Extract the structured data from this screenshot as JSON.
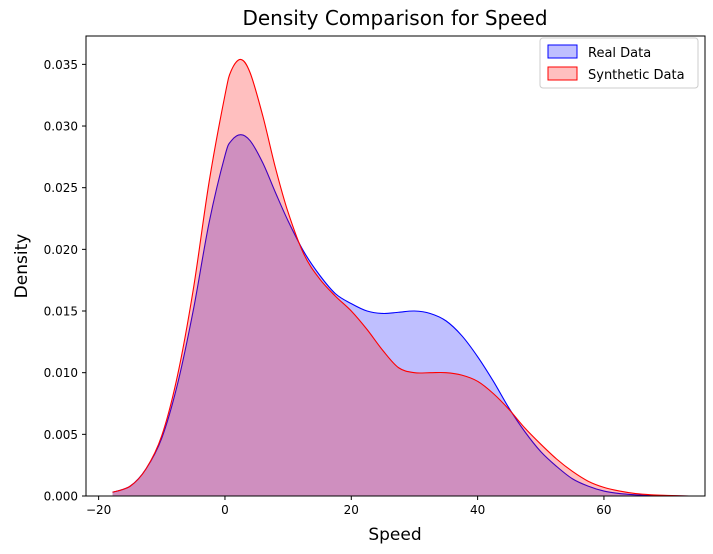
{
  "chart_data": {
    "type": "area",
    "title": "Density Comparison for Speed",
    "xlabel": "Speed",
    "ylabel": "Density",
    "xlim": [
      -22,
      76
    ],
    "ylim": [
      0,
      0.0373
    ],
    "xticks": [
      -20,
      0,
      20,
      40,
      60
    ],
    "xtick_labels": [
      "−20",
      "0",
      "20",
      "40",
      "60"
    ],
    "yticks": [
      0,
      0.005,
      0.01,
      0.015,
      0.02,
      0.025,
      0.03,
      0.035
    ],
    "ytick_labels": [
      "0.000",
      "0.005",
      "0.010",
      "0.015",
      "0.020",
      "0.025",
      "0.030",
      "0.035"
    ],
    "grid": false,
    "legend_position": "top-right",
    "series": [
      {
        "name": "Real Data",
        "color": "#0000ff",
        "fill": "#0000ff",
        "fill_opacity": 0.25,
        "x": [
          -17.8,
          -15,
          -12.5,
          -10,
          -7.5,
          -5,
          -2.5,
          0,
          1,
          2.5,
          4,
          6,
          8,
          10,
          12.5,
          15,
          17.5,
          20,
          22.5,
          25,
          27.5,
          30,
          32.5,
          35,
          37.5,
          40,
          42.5,
          45,
          47.5,
          50,
          52.5,
          55,
          57.5,
          60,
          62.5,
          65,
          67.5,
          70,
          73.5
        ],
        "y": [
          0.0003,
          0.0008,
          0.0022,
          0.0047,
          0.0091,
          0.0151,
          0.0222,
          0.0276,
          0.0288,
          0.0293,
          0.0288,
          0.027,
          0.0246,
          0.0223,
          0.0198,
          0.0179,
          0.0164,
          0.0156,
          0.015,
          0.0148,
          0.0149,
          0.015,
          0.0148,
          0.0142,
          0.013,
          0.0113,
          0.0093,
          0.0071,
          0.0052,
          0.0036,
          0.0024,
          0.0014,
          0.0008,
          0.0004,
          0.0002,
          0.0001,
          4e-05,
          2e-05,
          0.0
        ]
      },
      {
        "name": "Synthetic Data",
        "color": "#ff0000",
        "fill": "#ff0000",
        "fill_opacity": 0.25,
        "x": [
          -17.8,
          -15,
          -12.5,
          -10,
          -7.5,
          -5,
          -2.5,
          0,
          1,
          2.5,
          4,
          6,
          8,
          10,
          12.5,
          15,
          17.5,
          20,
          22.5,
          25,
          27.5,
          30,
          32.5,
          35,
          37.5,
          40,
          42.5,
          45,
          47.5,
          50,
          52.5,
          55,
          57.5,
          60,
          62.5,
          65,
          67.5,
          70,
          73.5
        ],
        "y": [
          0.0003,
          0.0008,
          0.0022,
          0.0049,
          0.0098,
          0.0168,
          0.0255,
          0.0325,
          0.0345,
          0.0354,
          0.0343,
          0.0308,
          0.0266,
          0.023,
          0.0196,
          0.0176,
          0.0162,
          0.015,
          0.0135,
          0.0118,
          0.0104,
          0.01,
          0.01,
          0.01,
          0.0098,
          0.0093,
          0.0083,
          0.007,
          0.0055,
          0.0042,
          0.003,
          0.002,
          0.0012,
          0.0007,
          0.0004,
          0.0002,
          0.0001,
          5e-05,
          0.0
        ]
      }
    ]
  }
}
